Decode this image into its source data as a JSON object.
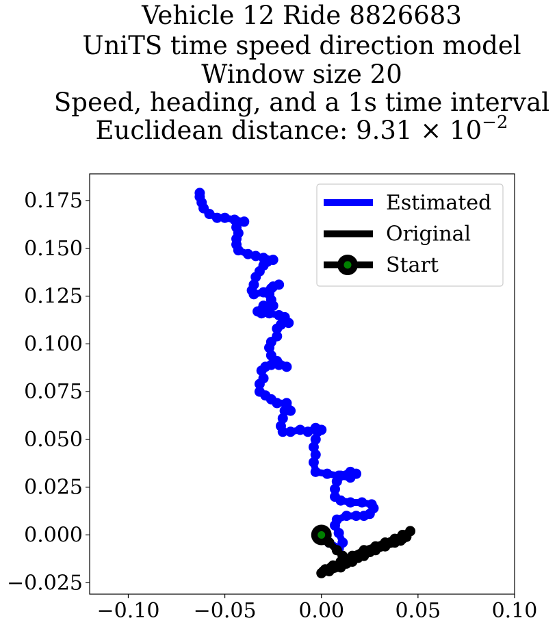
{
  "chart_data": {
    "type": "line",
    "title_lines": [
      "Vehicle 12 Ride 8826683",
      "UniTS time speed direction model",
      "Window size 20",
      "Speed, heading, and a 1s time interval"
    ],
    "title_metric_prefix": "Euclidean distance: 9.31 × 10",
    "title_metric_exponent": "−2",
    "xlabel": "",
    "ylabel": "",
    "xlim": [
      -0.12,
      0.1
    ],
    "ylim": [
      -0.031,
      0.189
    ],
    "x_ticks": [
      -0.1,
      -0.05,
      0.0,
      0.05,
      0.1
    ],
    "x_tick_labels": [
      "−0.10",
      "−0.05",
      "0.00",
      "0.05",
      "0.10"
    ],
    "y_ticks": [
      -0.025,
      0.0,
      0.025,
      0.05,
      0.075,
      0.1,
      0.125,
      0.15,
      0.175
    ],
    "y_tick_labels": [
      "−0.025",
      "0.000",
      "0.025",
      "0.050",
      "0.075",
      "0.100",
      "0.125",
      "0.150",
      "0.175"
    ],
    "grid": false,
    "legend_position": "top-right",
    "series": [
      {
        "name": "Estimated",
        "color": "#0000ff",
        "points": [
          [
            0.0,
            0.0
          ],
          [
            0.004,
            -0.004
          ],
          [
            0.009,
            -0.007
          ],
          [
            0.011,
            -0.004
          ],
          [
            0.009,
            0.001
          ],
          [
            0.007,
            0.005
          ],
          [
            0.008,
            0.008
          ],
          [
            0.013,
            0.01
          ],
          [
            0.018,
            0.01
          ],
          [
            0.022,
            0.01
          ],
          [
            0.025,
            0.011
          ],
          [
            0.027,
            0.014
          ],
          [
            0.026,
            0.016
          ],
          [
            0.021,
            0.017
          ],
          [
            0.015,
            0.017
          ],
          [
            0.01,
            0.018
          ],
          [
            0.007,
            0.02
          ],
          [
            0.007,
            0.024
          ],
          [
            0.008,
            0.028
          ],
          [
            0.01,
            0.031
          ],
          [
            0.015,
            0.033
          ],
          [
            0.018,
            0.032
          ],
          [
            0.015,
            0.03
          ],
          [
            0.009,
            0.031
          ],
          [
            0.003,
            0.032
          ],
          [
            -0.003,
            0.033
          ],
          [
            -0.004,
            0.038
          ],
          [
            -0.003,
            0.042
          ],
          [
            -0.004,
            0.046
          ],
          [
            -0.003,
            0.05
          ],
          [
            -0.002,
            0.054
          ],
          [
            0.0,
            0.055
          ],
          [
            -0.003,
            0.056
          ],
          [
            -0.007,
            0.054
          ],
          [
            -0.011,
            0.055
          ],
          [
            -0.016,
            0.054
          ],
          [
            -0.02,
            0.054
          ],
          [
            -0.021,
            0.057
          ],
          [
            -0.02,
            0.061
          ],
          [
            -0.019,
            0.065
          ],
          [
            -0.016,
            0.065
          ],
          [
            -0.018,
            0.069
          ],
          [
            -0.023,
            0.069
          ],
          [
            -0.026,
            0.071
          ],
          [
            -0.029,
            0.073
          ],
          [
            -0.032,
            0.075
          ],
          [
            -0.032,
            0.079
          ],
          [
            -0.03,
            0.082
          ],
          [
            -0.031,
            0.086
          ],
          [
            -0.029,
            0.088
          ],
          [
            -0.026,
            0.089
          ],
          [
            -0.022,
            0.089
          ],
          [
            -0.018,
            0.088
          ],
          [
            -0.023,
            0.091
          ],
          [
            -0.026,
            0.094
          ],
          [
            -0.027,
            0.098
          ],
          [
            -0.026,
            0.101
          ],
          [
            -0.023,
            0.104
          ],
          [
            -0.023,
            0.108
          ],
          [
            -0.021,
            0.11
          ],
          [
            -0.017,
            0.111
          ],
          [
            -0.019,
            0.114
          ],
          [
            -0.022,
            0.115
          ],
          [
            -0.027,
            0.116
          ],
          [
            -0.031,
            0.116
          ],
          [
            -0.033,
            0.117
          ],
          [
            -0.03,
            0.12
          ],
          [
            -0.025,
            0.12
          ],
          [
            -0.026,
            0.123
          ],
          [
            -0.027,
            0.126
          ],
          [
            -0.025,
            0.13
          ],
          [
            -0.022,
            0.131
          ],
          [
            -0.026,
            0.129
          ],
          [
            -0.03,
            0.127
          ],
          [
            -0.035,
            0.126
          ],
          [
            -0.036,
            0.128
          ],
          [
            -0.035,
            0.131
          ],
          [
            -0.034,
            0.135
          ],
          [
            -0.032,
            0.138
          ],
          [
            -0.03,
            0.141
          ],
          [
            -0.028,
            0.143
          ],
          [
            -0.025,
            0.144
          ],
          [
            -0.03,
            0.145
          ],
          [
            -0.034,
            0.146
          ],
          [
            -0.038,
            0.147
          ],
          [
            -0.043,
            0.149
          ],
          [
            -0.044,
            0.152
          ],
          [
            -0.044,
            0.155
          ],
          [
            -0.043,
            0.158
          ],
          [
            -0.044,
            0.161
          ],
          [
            -0.044,
            0.164
          ],
          [
            -0.04,
            0.164
          ],
          [
            -0.045,
            0.165
          ],
          [
            -0.05,
            0.166
          ],
          [
            -0.054,
            0.166
          ],
          [
            -0.058,
            0.168
          ],
          [
            -0.061,
            0.171
          ],
          [
            -0.062,
            0.174
          ],
          [
            -0.063,
            0.177
          ],
          [
            -0.063,
            0.179
          ]
        ]
      },
      {
        "name": "Original",
        "color": "#000000",
        "points": [
          [
            0.0,
            0.0
          ],
          [
            0.004,
            -0.004
          ],
          [
            0.008,
            -0.008
          ],
          [
            0.011,
            -0.011
          ],
          [
            0.015,
            -0.013
          ],
          [
            0.011,
            -0.014
          ],
          [
            0.006,
            -0.016
          ],
          [
            0.002,
            -0.018
          ],
          [
            0.0,
            -0.02
          ],
          [
            0.004,
            -0.019
          ],
          [
            0.01,
            -0.017
          ],
          [
            0.016,
            -0.014
          ],
          [
            0.022,
            -0.011
          ],
          [
            0.028,
            -0.008
          ],
          [
            0.033,
            -0.006
          ],
          [
            0.038,
            -0.004
          ],
          [
            0.042,
            -0.002
          ],
          [
            0.046,
            0.002
          ],
          [
            0.042,
            0.0
          ],
          [
            0.038,
            -0.002
          ],
          [
            0.033,
            -0.004
          ],
          [
            0.028,
            -0.006
          ],
          [
            0.022,
            -0.008
          ],
          [
            0.016,
            -0.011
          ],
          [
            0.01,
            -0.014
          ],
          [
            0.005,
            -0.017
          ],
          [
            0.001,
            -0.019
          ],
          [
            0.007,
            -0.017
          ],
          [
            0.013,
            -0.015
          ],
          [
            0.019,
            -0.012
          ],
          [
            0.025,
            -0.009
          ],
          [
            0.031,
            -0.006
          ],
          [
            0.036,
            -0.004
          ],
          [
            0.041,
            -0.003
          ],
          [
            0.044,
            -0.001
          ]
        ]
      }
    ],
    "start_point": {
      "name": "Start",
      "x": 0.0,
      "y": 0.0,
      "color_outer": "#000000",
      "color_inner": "#008000"
    }
  }
}
